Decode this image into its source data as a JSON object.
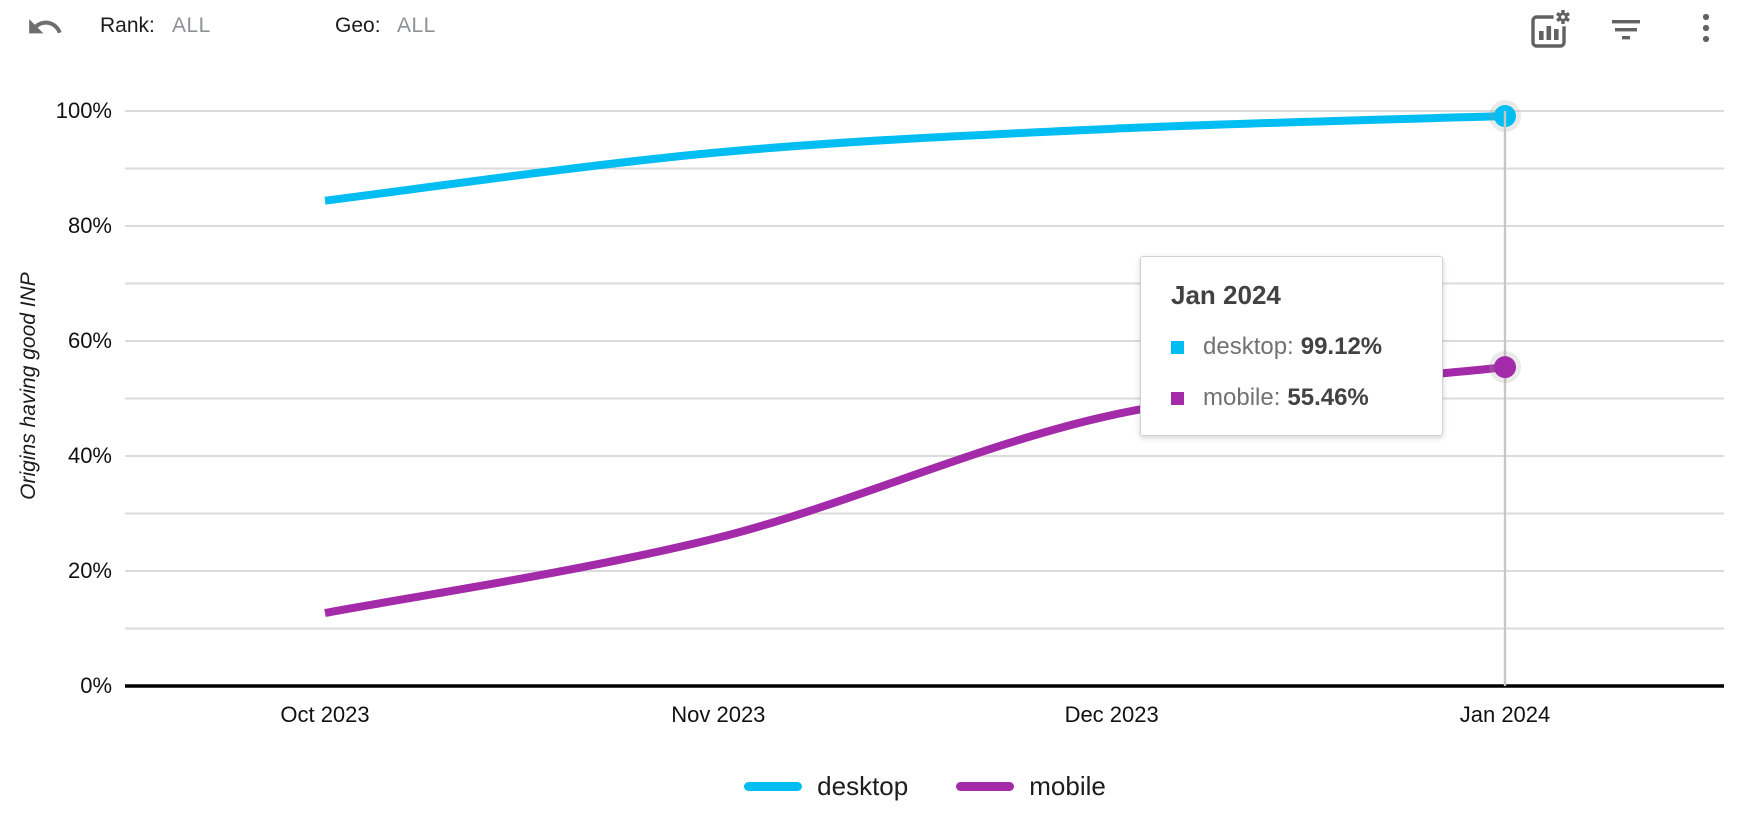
{
  "header": {
    "filters": [
      {
        "label": "Rank:",
        "value": "ALL"
      },
      {
        "label": "Geo:",
        "value": "ALL"
      }
    ],
    "icons": [
      "undo-icon",
      "chart-settings-icon",
      "filter-icon",
      "more-vert-icon"
    ]
  },
  "chart_data": {
    "type": "line",
    "title": "",
    "xlabel": "",
    "ylabel": "Origins having good INP",
    "categories": [
      "Oct 2023",
      "Nov 2023",
      "Dec 2023",
      "Jan 2024"
    ],
    "series": [
      {
        "name": "desktop",
        "color": "#00BDF2",
        "values": [
          84.4,
          92.8,
          96.9,
          99.12
        ]
      },
      {
        "name": "mobile",
        "color": "#A32AA8",
        "values": [
          12.7,
          25.8,
          47.1,
          55.46
        ]
      }
    ],
    "ylim": [
      0,
      100
    ],
    "ytick_step_pct": 20,
    "yticks": [
      "0%",
      "20%",
      "40%",
      "60%",
      "80%",
      "100%"
    ],
    "grid": true,
    "gridline_every_pct": 10,
    "legend_position": "bottom",
    "highlighted_x": "Jan 2024"
  },
  "tooltip": {
    "title": "Jan 2024",
    "items": [
      {
        "label": "desktop:",
        "value": "99.12%",
        "color": "#00BDF2"
      },
      {
        "label": "mobile:",
        "value": "55.46%",
        "color": "#A32AA8"
      }
    ]
  },
  "colors": {
    "desktop": "#00BDF2",
    "mobile": "#A32AA8",
    "gridline": "#dbdbdb",
    "axis": "#000000",
    "crosshair": "#c6c6c6",
    "icon": "#616161"
  }
}
